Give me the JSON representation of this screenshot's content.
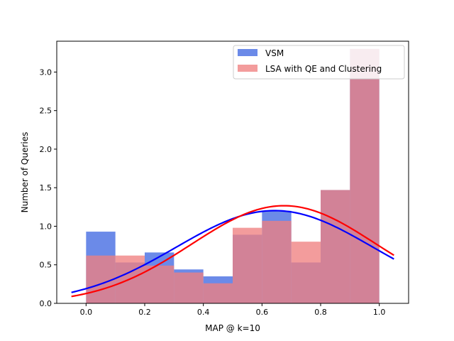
{
  "chart_data": {
    "type": "bar",
    "title": "",
    "xlabel": "MAP @ k=10",
    "ylabel": "Number of Queries",
    "xlim": [
      -0.1,
      1.1
    ],
    "ylim": [
      0,
      3.4
    ],
    "xticks": [
      "0.0",
      "0.2",
      "0.4",
      "0.6",
      "0.8",
      "1.0"
    ],
    "yticks": [
      "0.0",
      "0.5",
      "1.0",
      "1.5",
      "2.0",
      "2.5",
      "3.0"
    ],
    "legend_position": "top-right",
    "bin_edges": [
      0.0,
      0.1,
      0.2,
      0.3,
      0.4,
      0.5,
      0.6,
      0.7,
      0.8,
      0.9,
      1.0
    ],
    "series": [
      {
        "name": "VSM",
        "color": "#4169e1",
        "opacity": 0.78,
        "values": [
          0.93,
          0.53,
          0.66,
          0.44,
          0.35,
          0.89,
          1.2,
          0.53,
          1.47,
          3.3
        ],
        "fit": {
          "kind": "normal",
          "mean": 0.643,
          "sd": 0.335,
          "scale": 1.01,
          "color": "#0000ff"
        }
      },
      {
        "name": "LSA with QE and Clustering",
        "color": "#f08080",
        "opacity": 0.78,
        "values": [
          0.62,
          0.62,
          0.49,
          0.4,
          0.26,
          0.98,
          1.07,
          0.8,
          1.47,
          3.3
        ],
        "fit": {
          "kind": "normal",
          "mean": 0.675,
          "sd": 0.315,
          "scale": 1.0,
          "color": "#ff0000"
        }
      }
    ]
  }
}
